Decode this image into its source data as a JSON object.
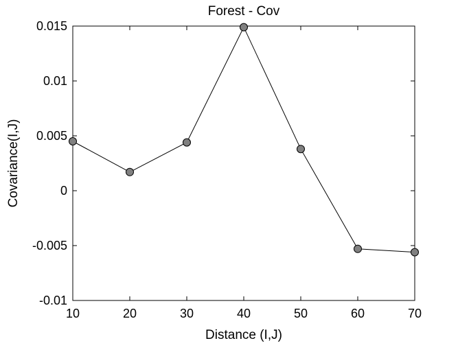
{
  "chart_data": {
    "type": "line",
    "title": "Forest - Cov",
    "xlabel": "Distance (I,J)",
    "ylabel": "Covariance(I,J)",
    "xlim": [
      10,
      70
    ],
    "ylim": [
      -0.01,
      0.015
    ],
    "xticks": [
      10,
      20,
      30,
      40,
      50,
      60,
      70
    ],
    "xtick_labels": [
      "10",
      "20",
      "30",
      "40",
      "50",
      "60",
      "70"
    ],
    "yticks": [
      -0.01,
      -0.005,
      0,
      0.005,
      0.01,
      0.015
    ],
    "ytick_labels": [
      "-0.01",
      "-0.005",
      "0",
      "0.005",
      "0.01",
      "0.015"
    ],
    "grid": false,
    "series": [
      {
        "x": [
          10,
          20,
          30,
          40,
          50,
          60,
          70
        ],
        "y": [
          0.0045,
          0.0017,
          0.0044,
          0.0149,
          0.0038,
          -0.0053,
          -0.0056
        ],
        "line_color": "#000000",
        "marker": "circle",
        "marker_fill": "#808080",
        "marker_edge": "#000000"
      }
    ]
  }
}
